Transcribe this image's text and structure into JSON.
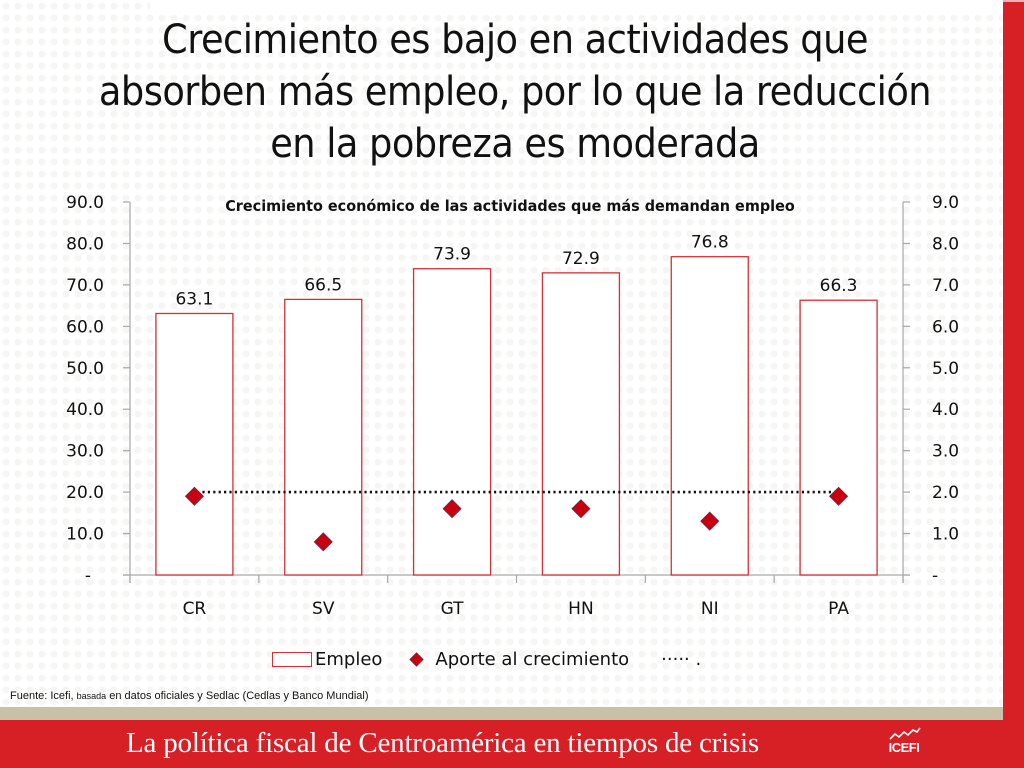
{
  "slide": {
    "title": "Crecimiento es bajo en actividades que absorben más empleo, por lo que la reducción en la pobreza es moderada",
    "title_lines": [
      "Crecimiento es bajo en actividades que",
      "absorben más empleo, por lo que la reducción",
      "en la pobreza es moderada"
    ],
    "source_prefix": "Fuente: Icefi, ",
    "source_small": "basada",
    "source_suffix": " en datos oficiales y Sedlac (Cedlas y Banco Mundial)",
    "footer_text": "La política fiscal de Centroamérica en tiempos de crisis",
    "logo_text": "ICEFI",
    "colors": {
      "brand_red": "#d71f26",
      "bar_border": "#d0313a",
      "diamond": "#c8000f",
      "tan": "#c9c0a8"
    }
  },
  "chart_data": {
    "type": "bar",
    "title": "Crecimiento económico de las actividades que más demandan empleo",
    "categories": [
      "CR",
      "SV",
      "GT",
      "HN",
      "NI",
      "PA"
    ],
    "series": [
      {
        "name": "Empleo",
        "kind": "bar",
        "axis": "left",
        "values": [
          63.1,
          66.5,
          73.9,
          72.9,
          76.8,
          66.3
        ],
        "data_labels": [
          "63.1",
          "66.5",
          "73.9",
          "72.9",
          "76.8",
          "66.3"
        ]
      },
      {
        "name": "Aporte al crecimiento",
        "kind": "scatter",
        "marker": "diamond",
        "axis": "right",
        "values": [
          1.9,
          0.8,
          1.6,
          1.6,
          1.3,
          1.9
        ]
      },
      {
        "name": "",
        "kind": "line",
        "style": "dotted",
        "axis": "right",
        "values": [
          2.0,
          2.0,
          2.0,
          2.0,
          2.0,
          2.0
        ]
      }
    ],
    "y_left": {
      "ylim": [
        0,
        90
      ],
      "ticks": [
        0,
        10,
        20,
        30,
        40,
        50,
        60,
        70,
        80,
        90
      ],
      "tick_labels": [
        "-",
        "10.0",
        "20.0",
        "30.0",
        "40.0",
        "50.0",
        "60.0",
        "70.0",
        "80.0",
        "90.0"
      ]
    },
    "y_right": {
      "ylim": [
        0,
        9
      ],
      "ticks": [
        0,
        1,
        2,
        3,
        4,
        5,
        6,
        7,
        8,
        9
      ],
      "tick_labels": [
        "-",
        "1.0",
        "2.0",
        "3.0",
        "4.0",
        "5.0",
        "6.0",
        "7.0",
        "8.0",
        "9.0"
      ]
    },
    "xlabel": "",
    "ylabel": "",
    "grid": false,
    "legend": {
      "placement": "bottom",
      "entries": [
        "Empleo",
        "Aporte al crecimiento",
        "····· ."
      ]
    }
  }
}
